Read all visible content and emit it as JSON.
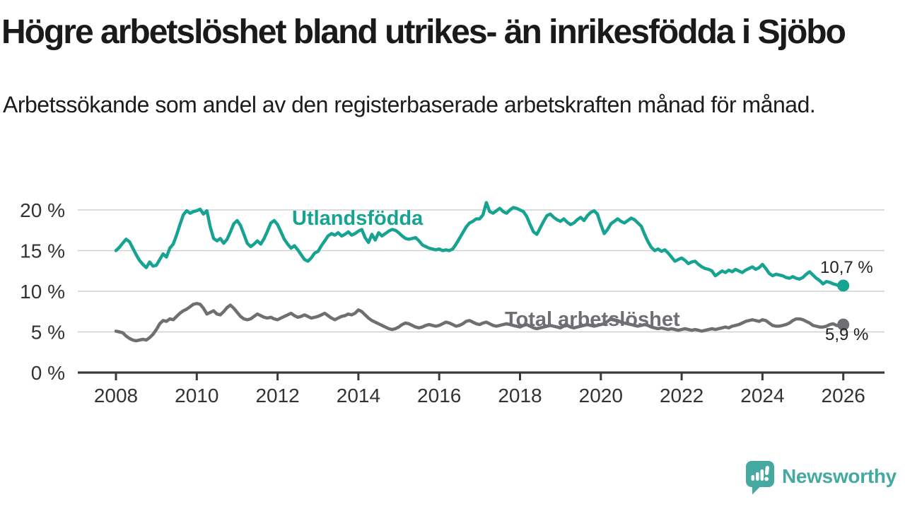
{
  "header": {
    "title": "Högre arbetslöshet bland utrikes- än inrikesfödda i Sjöbo",
    "subtitle": "Arbetssökande som andel av den registerbaserade arbetskraften månad för månad."
  },
  "branding": {
    "logo_text": "Newsworthy",
    "logo_color": "#45a8a1",
    "logo_icon": "speech-bubble-bar-chart-icon"
  },
  "chart_data": {
    "type": "line",
    "title": "",
    "xlabel": "",
    "ylabel": "",
    "x_start_year": 2008,
    "x_months_per_point": 1,
    "x_end_point": "2026-01",
    "xlim": [
      2008,
      2026.1
    ],
    "ylim": [
      0,
      21
    ],
    "grid": "horizontal",
    "legend_position": "inline-labels",
    "x_ticks": [
      {
        "year": 2008,
        "label": "2008"
      },
      {
        "year": 2010,
        "label": "2010"
      },
      {
        "year": 2012,
        "label": "2012"
      },
      {
        "year": 2014,
        "label": "2014"
      },
      {
        "year": 2016,
        "label": "2016"
      },
      {
        "year": 2018,
        "label": "2018"
      },
      {
        "year": 2020,
        "label": "2020"
      },
      {
        "year": 2022,
        "label": "2022"
      },
      {
        "year": 2024,
        "label": "2024"
      },
      {
        "year": 2026,
        "label": "2026"
      }
    ],
    "y_ticks": [
      {
        "value": 0,
        "label": "0 %"
      },
      {
        "value": 5,
        "label": "5 %"
      },
      {
        "value": 10,
        "label": "10 %"
      },
      {
        "value": 15,
        "label": "15 %"
      },
      {
        "value": 20,
        "label": "20 %"
      }
    ],
    "series": [
      {
        "name": "Utlandsfödda",
        "color": "#17a392",
        "end_value": 10.7,
        "end_label": "10,7 %",
        "values": [
          15.0,
          15.4,
          15.9,
          16.4,
          16.1,
          15.3,
          14.5,
          13.8,
          13.3,
          12.9,
          13.6,
          13.1,
          13.2,
          13.9,
          14.6,
          14.2,
          15.3,
          15.8,
          16.9,
          18.2,
          19.4,
          19.9,
          19.6,
          19.8,
          19.9,
          20.1,
          19.5,
          19.9,
          17.9,
          16.5,
          16.2,
          16.5,
          15.9,
          16.4,
          17.3,
          18.3,
          18.7,
          18.1,
          17.0,
          15.9,
          15.5,
          15.8,
          16.2,
          15.8,
          16.5,
          17.4,
          18.4,
          18.7,
          18.2,
          17.3,
          16.4,
          15.8,
          15.3,
          15.6,
          15.1,
          14.5,
          13.9,
          13.7,
          14.1,
          14.7,
          14.9,
          15.6,
          16.2,
          16.8,
          17.1,
          16.9,
          17.2,
          16.8,
          17.0,
          17.3,
          16.9,
          17.1,
          17.4,
          17.6,
          16.6,
          16.0,
          17.0,
          16.3,
          17.2,
          16.8,
          17.1,
          17.4,
          17.6,
          17.5,
          17.2,
          16.8,
          16.5,
          16.4,
          16.5,
          16.6,
          16.2,
          15.7,
          15.5,
          15.3,
          15.2,
          15.1,
          15.2,
          15.0,
          15.1,
          15.0,
          15.2,
          15.8,
          16.5,
          17.2,
          17.9,
          18.4,
          18.6,
          18.9,
          18.9,
          19.4,
          20.9,
          19.8,
          19.6,
          19.9,
          20.2,
          19.8,
          19.6,
          20.0,
          20.3,
          20.2,
          20.0,
          19.8,
          19.2,
          18.2,
          17.3,
          17.0,
          17.8,
          18.6,
          19.3,
          19.5,
          19.1,
          18.8,
          18.6,
          18.9,
          18.5,
          18.2,
          18.4,
          18.8,
          19.1,
          18.7,
          19.3,
          19.7,
          19.9,
          19.5,
          18.2,
          17.1,
          17.6,
          18.3,
          18.6,
          18.9,
          18.6,
          18.4,
          18.7,
          19.0,
          18.8,
          18.4,
          18.0,
          17.0,
          16.1,
          15.4,
          15.0,
          15.2,
          14.9,
          15.1,
          14.7,
          14.2,
          13.7,
          13.9,
          14.1,
          13.8,
          13.4,
          13.6,
          13.7,
          13.3,
          13.0,
          12.8,
          12.7,
          12.5,
          11.9,
          12.2,
          12.5,
          12.3,
          12.6,
          12.4,
          12.7,
          12.5,
          12.3,
          12.6,
          12.8,
          13.0,
          12.7,
          12.9,
          13.3,
          12.8,
          12.2,
          11.9,
          12.1,
          12.0,
          11.9,
          11.7,
          11.6,
          11.8,
          11.6,
          11.5,
          11.7,
          12.1,
          12.4,
          12.0,
          11.6,
          11.3,
          10.9,
          11.2,
          11.1,
          10.9,
          10.8,
          10.6,
          10.7
        ]
      },
      {
        "name": "Total arbetslöshet",
        "color": "#6f6f73",
        "end_value": 5.9,
        "end_label": "5,9 %",
        "values": [
          5.1,
          5.0,
          4.9,
          4.5,
          4.2,
          4.0,
          3.9,
          4.0,
          4.1,
          4.0,
          4.3,
          4.7,
          5.3,
          6.0,
          6.4,
          6.3,
          6.6,
          6.5,
          6.9,
          7.3,
          7.6,
          7.8,
          8.1,
          8.4,
          8.5,
          8.4,
          7.9,
          7.2,
          7.4,
          7.6,
          7.2,
          7.1,
          7.5,
          8.0,
          8.3,
          7.9,
          7.4,
          6.9,
          6.6,
          6.5,
          6.6,
          6.9,
          7.2,
          7.0,
          6.8,
          6.7,
          6.8,
          6.6,
          6.5,
          6.7,
          6.9,
          7.1,
          7.3,
          7.0,
          6.8,
          6.9,
          7.1,
          6.9,
          6.7,
          6.8,
          6.9,
          7.1,
          7.3,
          7.0,
          6.7,
          6.5,
          6.7,
          6.9,
          7.0,
          7.2,
          7.1,
          7.3,
          7.7,
          7.5,
          7.1,
          6.7,
          6.4,
          6.2,
          6.0,
          5.8,
          5.6,
          5.4,
          5.3,
          5.4,
          5.6,
          5.9,
          6.1,
          6.0,
          5.8,
          5.6,
          5.5,
          5.6,
          5.8,
          5.9,
          5.8,
          5.7,
          5.8,
          6.0,
          6.2,
          6.1,
          5.9,
          5.7,
          5.8,
          6.0,
          6.3,
          6.4,
          6.2,
          6.0,
          5.9,
          6.1,
          6.2,
          6.0,
          5.8,
          5.7,
          5.8,
          5.9,
          6.0,
          5.9,
          5.8,
          5.7,
          5.6,
          5.8,
          5.9,
          5.7,
          5.5,
          5.4,
          5.5,
          5.6,
          5.7,
          5.8,
          5.7,
          5.6,
          5.5,
          5.7,
          5.8,
          5.6,
          5.5,
          5.6,
          5.7,
          5.8,
          5.9,
          5.8,
          5.7,
          5.8,
          5.9,
          6.0,
          6.3,
          6.6,
          6.5,
          6.4,
          6.2,
          6.1,
          6.0,
          5.9,
          5.8,
          5.7,
          5.8,
          5.9,
          5.8,
          5.6,
          5.5,
          5.4,
          5.5,
          5.4,
          5.3,
          5.4,
          5.3,
          5.2,
          5.3,
          5.4,
          5.3,
          5.2,
          5.3,
          5.2,
          5.1,
          5.2,
          5.3,
          5.4,
          5.3,
          5.4,
          5.5,
          5.6,
          5.5,
          5.7,
          5.8,
          5.9,
          6.1,
          6.3,
          6.4,
          6.5,
          6.4,
          6.3,
          6.5,
          6.4,
          6.1,
          5.8,
          5.7,
          5.7,
          5.8,
          5.9,
          6.1,
          6.4,
          6.6,
          6.6,
          6.5,
          6.3,
          6.1,
          5.8,
          5.7,
          5.6,
          5.6,
          5.7,
          5.9,
          6.0,
          5.8,
          5.7,
          5.9
        ]
      }
    ],
    "style": {
      "gridline_color": "#cfcfcf",
      "axis_color": "#3a3a3a",
      "tick_label_color": "#333333",
      "end_label_color": "#222222"
    }
  }
}
